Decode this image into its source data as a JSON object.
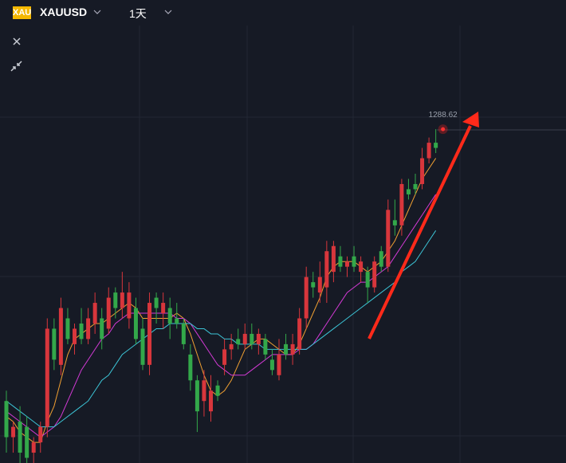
{
  "chart_data": {
    "type": "candlestick",
    "logo": "XAU",
    "symbol": "XAUUSD",
    "interval": "1天",
    "ylim": [
      1224,
      1309
    ],
    "up_color": "#d8363c",
    "down_color": "#33a84a",
    "open": [
      1236,
      1229,
      1232,
      1231,
      1226,
      1228,
      1231,
      1250,
      1243,
      1252,
      1247,
      1251,
      1248,
      1251,
      1252,
      1250,
      1257,
      1254,
      1252,
      1254,
      1250,
      1243,
      1256,
      1253,
      1254,
      1252,
      1251,
      1245,
      1240,
      1236,
      1234,
      1239,
      1243,
      1246,
      1248,
      1247,
      1249,
      1247,
      1248,
      1244,
      1241,
      1247,
      1245,
      1246,
      1252,
      1259,
      1257,
      1258,
      1261,
      1264,
      1262,
      1264,
      1261,
      1261,
      1258,
      1265,
      1262,
      1271,
      1270,
      1277,
      1278,
      1278,
      1283,
      1286
    ],
    "high": [
      1238,
      1232,
      1235,
      1233,
      1229,
      1232,
      1252,
      1252,
      1256,
      1254,
      1251,
      1254,
      1254,
      1257,
      1254,
      1258,
      1258,
      1261,
      1259,
      1256,
      1252,
      1257,
      1257,
      1257,
      1256,
      1255,
      1252,
      1247,
      1241,
      1242,
      1241,
      1240,
      1248,
      1249,
      1250,
      1251,
      1251,
      1250,
      1249,
      1246,
      1248,
      1249,
      1249,
      1254,
      1262,
      1261,
      1263,
      1267,
      1267,
      1266,
      1264,
      1266,
      1264,
      1262,
      1264,
      1266,
      1275,
      1275,
      1279,
      1279,
      1280,
      1285,
      1287,
      1288.62
    ],
    "low": [
      1226,
      1226,
      1224,
      1224,
      1224,
      1226,
      1229,
      1242,
      1241,
      1247,
      1245,
      1247,
      1247,
      1249,
      1246,
      1249,
      1252,
      1252,
      1250,
      1247,
      1242,
      1241,
      1251,
      1250,
      1248,
      1250,
      1246,
      1238,
      1230,
      1233,
      1232,
      1236,
      1241,
      1244,
      1246,
      1246,
      1246,
      1245,
      1244,
      1241,
      1240,
      1244,
      1243,
      1245,
      1250,
      1256,
      1255,
      1255,
      1259,
      1261,
      1260,
      1261,
      1259,
      1255,
      1257,
      1261,
      1261,
      1268,
      1268,
      1275,
      1276,
      1277,
      1282,
      1284
    ],
    "close": [
      1229,
      1231,
      1226,
      1225,
      1228,
      1231,
      1250,
      1244,
      1254,
      1248,
      1250,
      1248,
      1252,
      1255,
      1248,
      1256,
      1254,
      1257,
      1257,
      1248,
      1243,
      1255,
      1254,
      1255,
      1251,
      1251,
      1247,
      1240,
      1234,
      1240,
      1238,
      1237,
      1246,
      1247,
      1247,
      1249,
      1247,
      1249,
      1245,
      1242,
      1245,
      1245,
      1247,
      1252,
      1260,
      1258,
      1260,
      1265,
      1266,
      1262,
      1263,
      1262,
      1263,
      1258,
      1263,
      1262,
      1273,
      1270,
      1278,
      1276,
      1277,
      1283,
      1286,
      1285
    ],
    "moving_averages": [
      {
        "color": "#f0a032",
        "values": [
          1233,
          1232,
          1230,
          1229,
          1228,
          1228,
          1232,
          1235,
          1240,
          1245,
          1248,
          1249,
          1250,
          1251,
          1251,
          1252,
          1253,
          1254,
          1255,
          1254,
          1252,
          1252,
          1252,
          1252,
          1252,
          1253,
          1252,
          1249,
          1245,
          1241,
          1238,
          1237,
          1238,
          1240,
          1243,
          1246,
          1247,
          1248,
          1248,
          1247,
          1246,
          1245,
          1245,
          1247,
          1250,
          1253,
          1256,
          1260,
          1262,
          1263,
          1263,
          1263,
          1262,
          1261,
          1262,
          1263,
          1265,
          1267,
          1270,
          1273,
          1276,
          1279,
          1281,
          1283
        ]
      },
      {
        "color": "#d43ad6",
        "values": [
          1234,
          1233,
          1232,
          1231,
          1230,
          1229,
          1230,
          1231,
          1233,
          1236,
          1239,
          1242,
          1244,
          1246,
          1248,
          1249,
          1251,
          1252,
          1253,
          1253,
          1253,
          1253,
          1253,
          1253,
          1253,
          1252,
          1252,
          1251,
          1249,
          1247,
          1245,
          1243,
          1242,
          1241,
          1241,
          1241,
          1242,
          1243,
          1244,
          1245,
          1245,
          1245,
          1245,
          1246,
          1246,
          1247,
          1249,
          1251,
          1253,
          1255,
          1257,
          1258,
          1259,
          1259,
          1260,
          1261,
          1262,
          1264,
          1266,
          1268,
          1270,
          1272,
          1274,
          1276
        ]
      },
      {
        "color": "#3cc4d6",
        "values": [
          1236,
          1235,
          1234,
          1233,
          1232,
          1231,
          1231,
          1231,
          1232,
          1233,
          1234,
          1235,
          1236,
          1238,
          1240,
          1241,
          1243,
          1245,
          1246,
          1247,
          1248,
          1249,
          1250,
          1250,
          1251,
          1251,
          1251,
          1251,
          1250,
          1250,
          1249,
          1249,
          1248,
          1248,
          1247,
          1247,
          1247,
          1247,
          1246,
          1246,
          1246,
          1246,
          1246,
          1246,
          1246,
          1247,
          1248,
          1249,
          1250,
          1251,
          1252,
          1253,
          1254,
          1255,
          1256,
          1257,
          1258,
          1259,
          1261,
          1262,
          1263,
          1265,
          1267,
          1269
        ]
      }
    ]
  }
}
